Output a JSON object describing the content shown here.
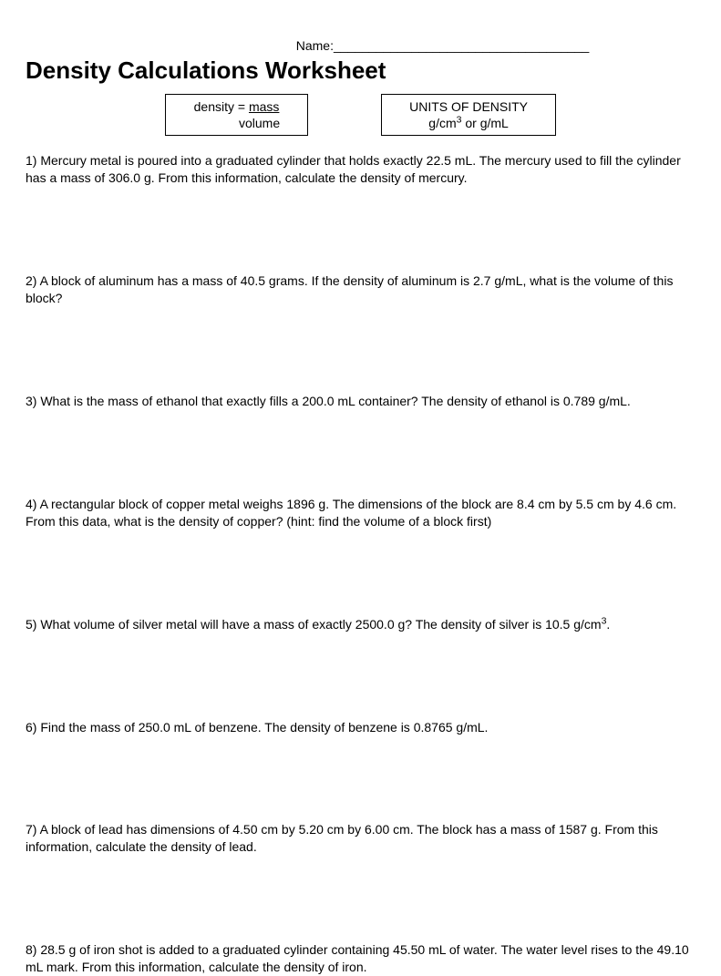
{
  "header": {
    "name_label": "Name:____________________________________",
    "title": "Density Calculations Worksheet"
  },
  "formula_box": {
    "line1_prefix": "density = ",
    "line1_frac": "mass",
    "line2": "volume"
  },
  "units_box": {
    "line1": "UNITS OF DENSITY",
    "line2_html": "g/cm<sup>3</sup> or g/mL"
  },
  "questions": [
    "1)  Mercury metal is poured into a graduated cylinder that holds exactly 22.5 mL. The mercury used to fill the cylinder has a mass of 306.0 g. From this information, calculate the density of mercury.",
    "2)  A block of aluminum has a mass of 40.5 grams.  If the density of aluminum is 2.7 g/mL, what is the volume of this block?",
    "3)  What is the mass of ethanol that exactly fills a 200.0 mL container? The density of ethanol is 0.789 g/mL.",
    "4)  A rectangular block of copper metal weighs 1896 g. The dimensions of the block are 8.4 cm by 5.5 cm by 4.6 cm. From this data, what is the density of copper?  (hint:  find the volume of a block first)",
    "5)  What volume of silver metal will have a mass of exactly 2500.0 g?  The density of silver is 10.5 g/cm<sup>3</sup>.",
    "6)  Find the mass of 250.0 mL of benzene. The density of benzene is 0.8765 g/mL.",
    "7)   A block of lead has dimensions of 4.50 cm by 5.20 cm by 6.00 cm. The block has a mass of 1587 g. From this information, calculate the density of lead.",
    "8)   28.5 g of iron shot is added to a graduated cylinder containing 45.50 mL of water. The water level rises to the 49.10 mL mark.  From this information, calculate the density of iron."
  ]
}
